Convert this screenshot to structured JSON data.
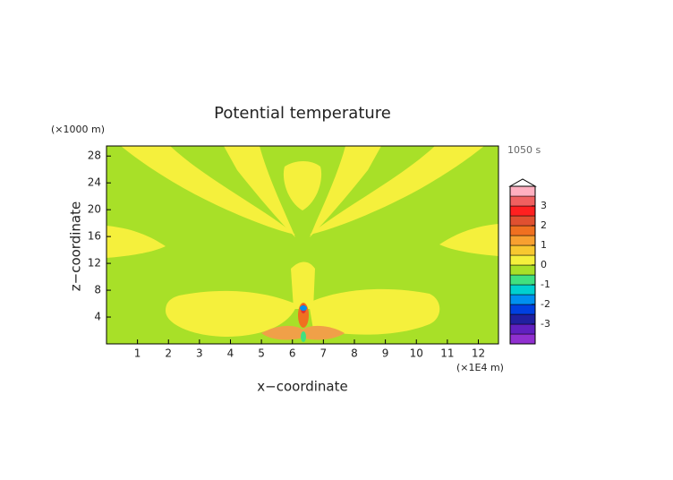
{
  "chart_data": {
    "type": "contour",
    "title": "Potential temperature",
    "time_label": "1050 s",
    "x_label": "x−coordinate",
    "y_label": "z−coordinate",
    "x_unit": "(×1E4 m)",
    "y_unit": "(×1000 m)",
    "xlim": [
      0,
      12.65
    ],
    "xticks": [
      1,
      2,
      3,
      4,
      5,
      6,
      7,
      8,
      9,
      10,
      11,
      12
    ],
    "ylim": [
      0,
      29.5
    ],
    "yticks": [
      4,
      8,
      12,
      16,
      20,
      24,
      28
    ],
    "colorbar": {
      "lim": [
        -4,
        4
      ],
      "ticks": [
        -3,
        -2,
        -1,
        0,
        1,
        2,
        3
      ],
      "levels": [
        -4,
        -3.5,
        -3,
        -2.5,
        -2,
        -1.5,
        -1,
        -0.5,
        0,
        0.5,
        1,
        1.5,
        2,
        2.5,
        3,
        3.5,
        4
      ],
      "colors": [
        "#9030d0",
        "#6020c0",
        "#2020a0",
        "#0040e0",
        "#0090f0",
        "#00d0d0",
        "#40e080",
        "#a8e028",
        "#f5f03c",
        "#f8c830",
        "#f8a030",
        "#f07020",
        "#e05030",
        "#ff2020",
        "#f06060",
        "#ffb0c0"
      ]
    }
  }
}
